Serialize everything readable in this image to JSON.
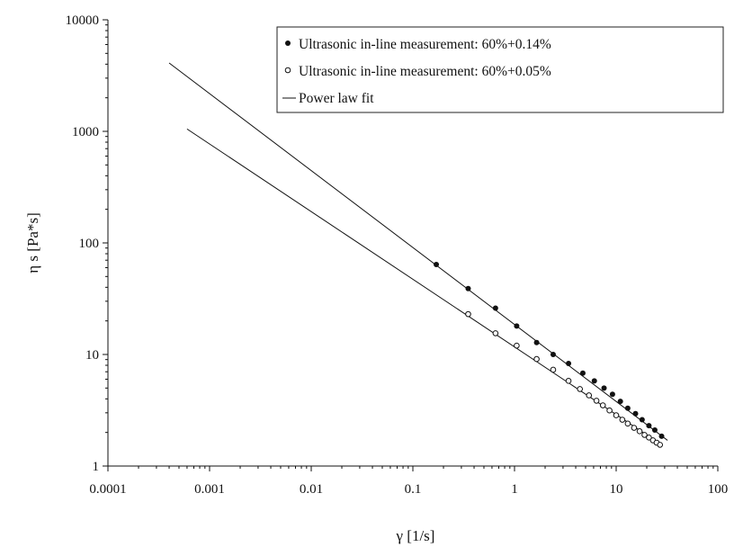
{
  "chart_data": {
    "type": "scatter",
    "xscale": "log",
    "yscale": "log",
    "xlim": [
      0.0001,
      100
    ],
    "ylim": [
      1,
      10000
    ],
    "xlabel": "γ [1/s]",
    "ylabel": "η s [Pa*s]",
    "xticks": [
      "0.0001",
      "0.001",
      "0.01",
      "0.1",
      "1",
      "10",
      "100"
    ],
    "yticks": [
      "1",
      "10",
      "100",
      "1000",
      "10000"
    ],
    "grid": false,
    "legend_position": "top-right",
    "series": [
      {
        "name": "Ultrasonic in-line measurement: 60%+0.14%",
        "marker": "filled-circle",
        "x": [
          0.17,
          0.35,
          0.65,
          1.05,
          1.65,
          2.4,
          3.4,
          4.7,
          6.1,
          7.6,
          9.2,
          11,
          13,
          15.5,
          18,
          21,
          24,
          28
        ],
        "y": [
          64,
          39,
          26,
          18,
          12.8,
          10,
          8.3,
          6.8,
          5.8,
          5.0,
          4.4,
          3.8,
          3.3,
          2.95,
          2.6,
          2.3,
          2.1,
          1.85
        ]
      },
      {
        "name": "Ultrasonic in-line measurement: 60%+0.05%",
        "marker": "open-circle",
        "x": [
          0.35,
          0.65,
          1.05,
          1.65,
          2.4,
          3.4,
          4.4,
          5.4,
          6.4,
          7.4,
          8.6,
          10,
          11.5,
          13,
          15,
          17,
          19,
          21,
          23,
          25,
          27
        ],
        "y": [
          23,
          15.5,
          12,
          9.1,
          7.3,
          5.8,
          4.9,
          4.3,
          3.85,
          3.5,
          3.15,
          2.85,
          2.6,
          2.4,
          2.2,
          2.05,
          1.9,
          1.8,
          1.7,
          1.62,
          1.55
        ]
      },
      {
        "name": "Power law fit",
        "marker": "line",
        "lines": [
          {
            "x": [
              0.0004,
              32
            ],
            "y": [
              4100,
              1.7
            ]
          },
          {
            "x": [
              0.0006,
              28
            ],
            "y": [
              1050,
              1.55
            ]
          }
        ]
      }
    ]
  }
}
